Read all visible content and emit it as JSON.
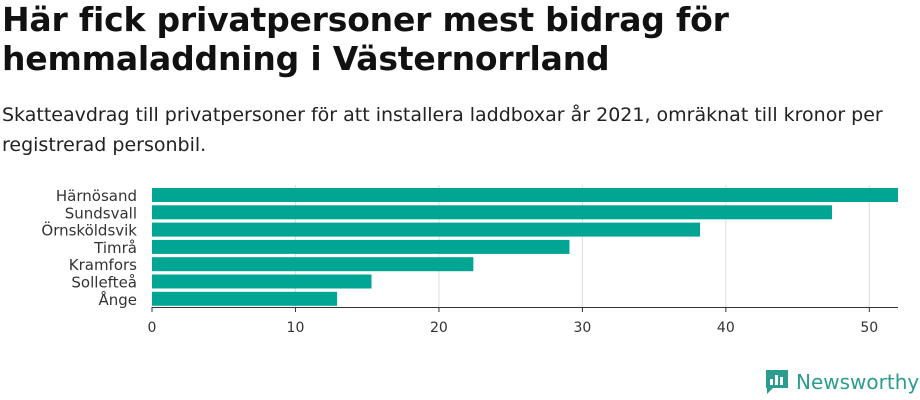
{
  "header": {
    "title": "Här fick privatpersoner mest bidrag för hemmaladdning i Västernorrland",
    "subtitle": "Skatteavdrag till privatpersoner för att installera laddboxar år 2021, omräknat till kronor per registrerad personbil."
  },
  "brand": {
    "name": "Newsworthy",
    "icon": "newsworthy-logo-icon",
    "color": "#2a9d8f"
  },
  "chart_data": {
    "type": "bar",
    "orientation": "horizontal",
    "categories": [
      "Härnösand",
      "Sundsvall",
      "Örnsköldsvik",
      "Timrå",
      "Kramfors",
      "Sollefteå",
      "Ånge"
    ],
    "values": [
      52.0,
      47.4,
      38.2,
      29.1,
      22.4,
      15.3,
      12.9
    ],
    "xlim": [
      0,
      52
    ],
    "xticks": [
      0,
      10,
      20,
      30,
      40,
      50
    ],
    "grid": true,
    "bar_color": "#00a693",
    "title": "",
    "xlabel": "",
    "ylabel": ""
  }
}
